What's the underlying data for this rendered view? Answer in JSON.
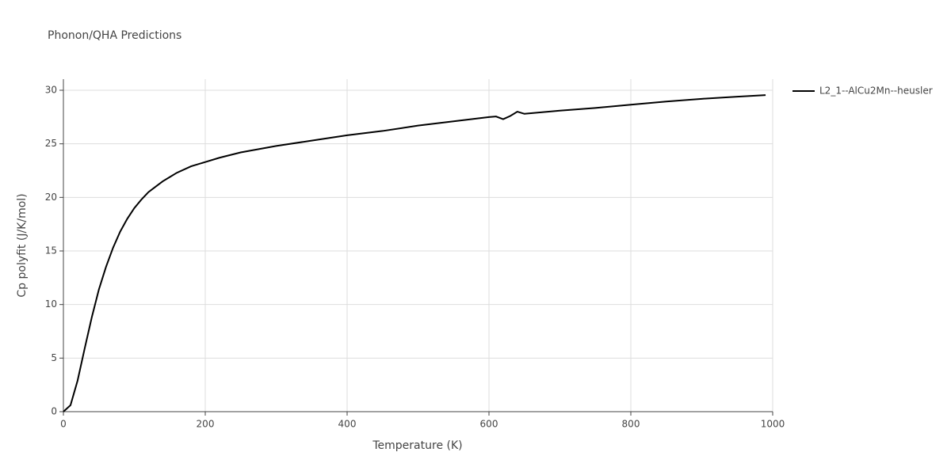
{
  "chart_data": {
    "type": "line",
    "title": "Phonon/QHA Predictions",
    "x_label": "Temperature (K)",
    "y_label": "Cp polyfit (J/K/mol)",
    "x": [
      0,
      10,
      20,
      30,
      40,
      50,
      60,
      70,
      80,
      90,
      100,
      110,
      120,
      130,
      140,
      150,
      160,
      180,
      200,
      220,
      250,
      300,
      350,
      400,
      450,
      500,
      550,
      600,
      610,
      620,
      630,
      640,
      650,
      700,
      750,
      800,
      850,
      900,
      950,
      990
    ],
    "series": [
      {
        "name": "L2_1--AlCu2Mn--heusler",
        "color": "#000000",
        "values": [
          0,
          0.6,
          2.9,
          5.9,
          8.8,
          11.4,
          13.5,
          15.3,
          16.8,
          18.0,
          19.0,
          19.8,
          20.5,
          21.0,
          21.5,
          21.9,
          22.3,
          22.9,
          23.3,
          23.7,
          24.2,
          24.8,
          25.3,
          25.8,
          26.2,
          26.7,
          27.1,
          27.5,
          27.55,
          27.3,
          27.6,
          28.0,
          27.8,
          28.1,
          28.35,
          28.65,
          28.95,
          29.2,
          29.4,
          29.55
        ]
      }
    ],
    "xlim": [
      0,
      1000
    ],
    "xticks": [
      0,
      200,
      400,
      600,
      800,
      1000
    ],
    "ylim": [
      0,
      30
    ],
    "yticks": [
      0,
      5,
      10,
      15,
      20,
      25,
      30
    ],
    "grid": true,
    "legend": "right"
  }
}
